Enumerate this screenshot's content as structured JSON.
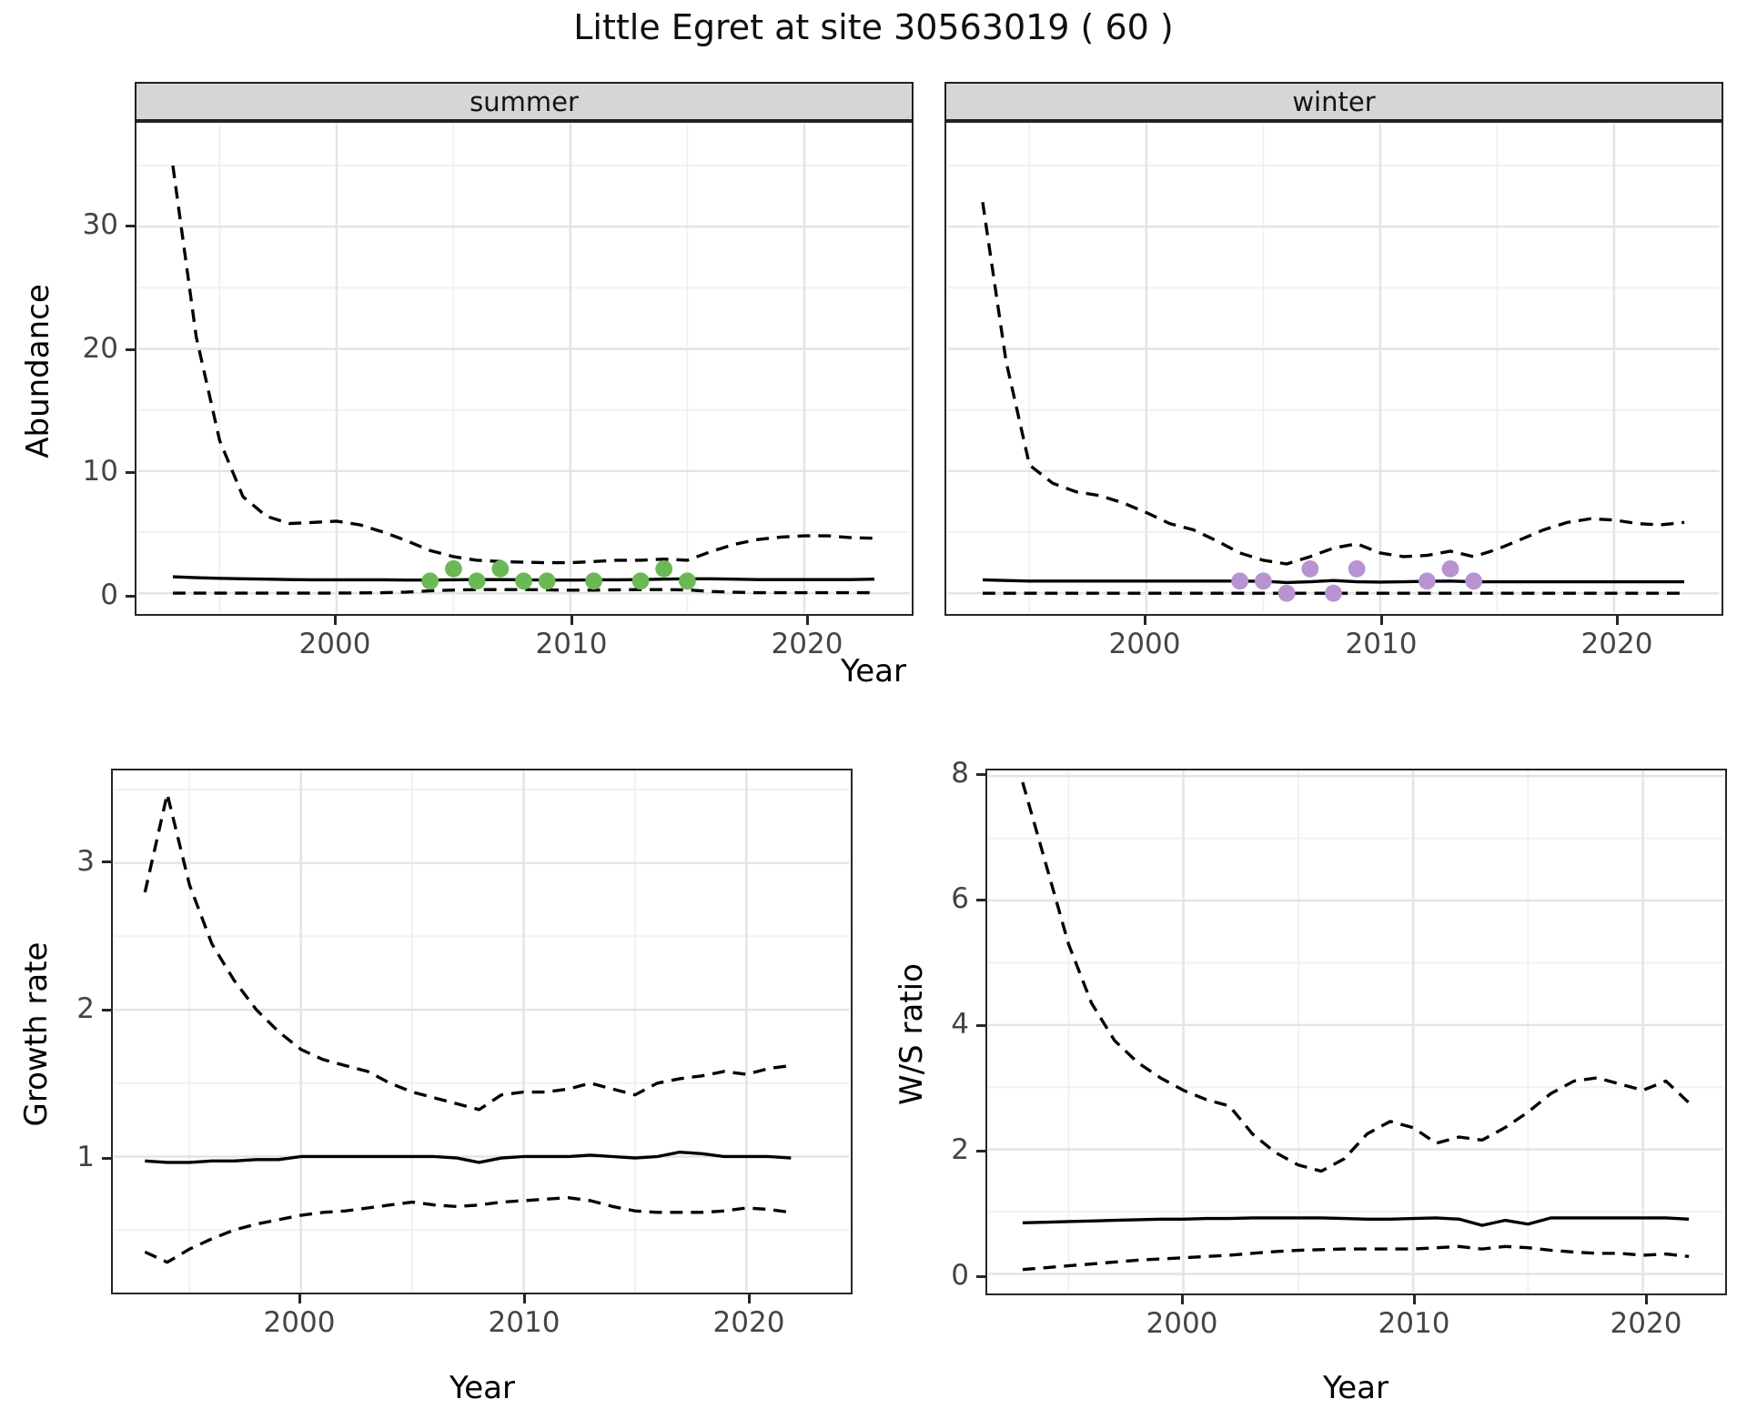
{
  "title": "Little Egret at site 30563019 ( 60 )",
  "colors": {
    "summer_point": "#6ab954",
    "winter_point": "#b794d1",
    "line": "#000000",
    "tick_text": "#444444",
    "strip_bg": "#d6d6d6",
    "grid_major": "#e4e4e4",
    "grid_minor": "#f1f1f1",
    "panel_border": "#262626"
  },
  "chart_data": [
    {
      "id": "abundance_summer",
      "type": "line",
      "facet_label": "summer",
      "ylabel": "Abundance",
      "xlabel": "Year",
      "xlim": [
        1991.5,
        2024.5
      ],
      "ylim": [
        -1.62,
        38.5
      ],
      "xticks": [
        2000,
        2010,
        2020
      ],
      "xminor": [
        1995,
        2005,
        2015
      ],
      "yticks": [
        0,
        10,
        20,
        30
      ],
      "yminor": [
        5,
        15,
        25,
        35
      ],
      "grid": true,
      "x": [
        1993,
        1994,
        1995,
        1996,
        1997,
        1998,
        1999,
        2000,
        2001,
        2002,
        2003,
        2004,
        2005,
        2006,
        2007,
        2008,
        2009,
        2010,
        2011,
        2012,
        2013,
        2014,
        2015,
        2016,
        2017,
        2018,
        2019,
        2020,
        2021,
        2022,
        2023
      ],
      "series": [
        {
          "name": "upper_ci",
          "style": "dashed",
          "values": [
            35,
            21,
            12.5,
            7.9,
            6.3,
            5.7,
            5.8,
            5.9,
            5.6,
            5.0,
            4.3,
            3.5,
            3.0,
            2.7,
            2.6,
            2.55,
            2.5,
            2.5,
            2.6,
            2.7,
            2.7,
            2.8,
            2.7,
            3.4,
            4.0,
            4.4,
            4.6,
            4.7,
            4.7,
            4.55,
            4.5
          ]
        },
        {
          "name": "median",
          "style": "solid",
          "values": [
            1.35,
            1.28,
            1.22,
            1.18,
            1.15,
            1.12,
            1.1,
            1.1,
            1.1,
            1.1,
            1.08,
            1.08,
            1.1,
            1.12,
            1.12,
            1.1,
            1.08,
            1.08,
            1.1,
            1.1,
            1.12,
            1.15,
            1.18,
            1.18,
            1.15,
            1.12,
            1.12,
            1.12,
            1.12,
            1.12,
            1.15
          ]
        },
        {
          "name": "lower_ci",
          "style": "dashed",
          "values": [
            0.02,
            0.02,
            0.02,
            0.02,
            0.02,
            0.02,
            0.02,
            0.02,
            0.03,
            0.05,
            0.1,
            0.2,
            0.27,
            0.3,
            0.3,
            0.3,
            0.28,
            0.25,
            0.25,
            0.28,
            0.3,
            0.3,
            0.28,
            0.15,
            0.08,
            0.05,
            0.05,
            0.05,
            0.05,
            0.05,
            0.05
          ]
        }
      ],
      "points": {
        "name": "observed-summer-counts",
        "color_key": "summer_point",
        "x": [
          2004,
          2005,
          2006,
          2007,
          2008,
          2009,
          2011,
          2013,
          2014,
          2015
        ],
        "y": [
          1,
          2,
          1,
          2,
          1,
          1,
          1,
          1,
          2,
          1
        ]
      }
    },
    {
      "id": "abundance_winter",
      "type": "line",
      "facet_label": "winter",
      "ylabel": "Abundance",
      "xlabel": "Year",
      "xlim": [
        1991.5,
        2024.5
      ],
      "ylim": [
        -1.62,
        38.5
      ],
      "xticks": [
        2000,
        2010,
        2020
      ],
      "xminor": [
        1995,
        2005,
        2015
      ],
      "yticks": [
        0,
        10,
        20,
        30
      ],
      "yminor": [
        5,
        15,
        25,
        35
      ],
      "grid": true,
      "x": [
        1993,
        1994,
        1995,
        1996,
        1997,
        1998,
        1999,
        2000,
        2001,
        2002,
        2003,
        2004,
        2005,
        2006,
        2007,
        2008,
        2009,
        2010,
        2011,
        2012,
        2013,
        2014,
        2015,
        2016,
        2017,
        2018,
        2019,
        2020,
        2021,
        2022,
        2023
      ],
      "series": [
        {
          "name": "upper_ci",
          "style": "dashed",
          "values": [
            32,
            19,
            10.5,
            9.0,
            8.3,
            8.0,
            7.4,
            6.6,
            5.7,
            5.2,
            4.3,
            3.3,
            2.7,
            2.4,
            3.0,
            3.7,
            4.05,
            3.3,
            3.0,
            3.1,
            3.45,
            3.0,
            3.6,
            4.4,
            5.2,
            5.8,
            6.1,
            6.0,
            5.7,
            5.6,
            5.8
          ]
        },
        {
          "name": "median",
          "style": "solid",
          "values": [
            1.1,
            1.05,
            1.0,
            1.0,
            1.0,
            1.0,
            1.0,
            1.0,
            1.0,
            1.0,
            1.0,
            1.0,
            0.98,
            0.88,
            0.95,
            1.05,
            0.95,
            0.92,
            0.95,
            0.98,
            1.0,
            0.95,
            0.95,
            0.95,
            0.95,
            0.95,
            0.95,
            0.95,
            0.95,
            0.95,
            0.95
          ]
        },
        {
          "name": "lower_ci",
          "style": "dashed",
          "values": [
            0,
            0,
            0,
            0,
            0,
            0,
            0,
            0,
            0,
            0,
            0,
            0,
            0,
            0,
            0,
            0,
            0,
            0,
            0,
            0,
            0,
            0,
            0,
            0,
            0,
            0,
            0,
            0,
            0,
            0,
            0
          ]
        }
      ],
      "points": {
        "name": "observed-winter-counts",
        "color_key": "winter_point",
        "x": [
          2004,
          2005,
          2006,
          2007,
          2008,
          2009,
          2012,
          2013,
          2014
        ],
        "y": [
          1,
          1,
          0,
          2,
          0,
          2,
          1,
          2,
          1
        ]
      }
    },
    {
      "id": "growth_rate",
      "type": "line",
      "facet_label": "",
      "ylabel": "Growth rate",
      "xlabel": "Year",
      "xlim": [
        1991.6,
        2024.6
      ],
      "ylim": [
        0.08,
        3.63
      ],
      "xticks": [
        2000,
        2010,
        2020
      ],
      "xminor": [
        1995,
        2005,
        2015
      ],
      "yticks": [
        1,
        2,
        3
      ],
      "yminor": [
        0.5,
        1.5,
        2.5,
        3.5
      ],
      "grid": true,
      "x": [
        1993,
        1994,
        1995,
        1996,
        1997,
        1998,
        1999,
        2000,
        2001,
        2002,
        2003,
        2004,
        2005,
        2006,
        2007,
        2008,
        2009,
        2010,
        2011,
        2012,
        2013,
        2014,
        2015,
        2016,
        2017,
        2018,
        2019,
        2020,
        2021,
        2022
      ],
      "series": [
        {
          "name": "upper_ci",
          "style": "dashed",
          "values": [
            2.8,
            3.47,
            2.85,
            2.45,
            2.2,
            2.0,
            1.85,
            1.73,
            1.66,
            1.62,
            1.58,
            1.5,
            1.44,
            1.4,
            1.36,
            1.32,
            1.42,
            1.44,
            1.44,
            1.46,
            1.5,
            1.46,
            1.42,
            1.5,
            1.53,
            1.55,
            1.58,
            1.56,
            1.6,
            1.62
          ]
        },
        {
          "name": "median",
          "style": "solid",
          "values": [
            0.97,
            0.96,
            0.96,
            0.97,
            0.97,
            0.98,
            0.98,
            1.0,
            1.0,
            1.0,
            1.0,
            1.0,
            1.0,
            1.0,
            0.99,
            0.96,
            0.99,
            1.0,
            1.0,
            1.0,
            1.01,
            1.0,
            0.99,
            1.0,
            1.03,
            1.02,
            1.0,
            1.0,
            1.0,
            0.99
          ]
        },
        {
          "name": "lower_ci",
          "style": "dashed",
          "values": [
            0.35,
            0.28,
            0.37,
            0.44,
            0.5,
            0.54,
            0.57,
            0.6,
            0.62,
            0.63,
            0.65,
            0.67,
            0.69,
            0.67,
            0.66,
            0.67,
            0.69,
            0.7,
            0.71,
            0.72,
            0.7,
            0.66,
            0.63,
            0.62,
            0.62,
            0.62,
            0.63,
            0.65,
            0.64,
            0.62
          ]
        }
      ],
      "points": null
    },
    {
      "id": "ws_ratio",
      "type": "line",
      "facet_label": "",
      "ylabel": "W/S ratio",
      "xlabel": "Year",
      "xlim": [
        1991.5,
        2023.5
      ],
      "ylim": [
        -0.3,
        8.09
      ],
      "xticks": [
        2000,
        2010,
        2020
      ],
      "xminor": [
        1995,
        2005,
        2015
      ],
      "yticks": [
        0,
        2,
        4,
        6,
        8
      ],
      "yminor": [
        1,
        3,
        5,
        7
      ],
      "grid": true,
      "x": [
        1993,
        1994,
        1995,
        1996,
        1997,
        1998,
        1999,
        2000,
        2001,
        2002,
        2003,
        2004,
        2005,
        2006,
        2007,
        2008,
        2009,
        2010,
        2011,
        2012,
        2013,
        2014,
        2015,
        2016,
        2017,
        2018,
        2019,
        2020,
        2021,
        2022
      ],
      "series": [
        {
          "name": "upper_ci",
          "style": "dashed",
          "values": [
            7.9,
            6.6,
            5.3,
            4.35,
            3.75,
            3.4,
            3.15,
            2.95,
            2.8,
            2.7,
            2.25,
            1.95,
            1.75,
            1.65,
            1.85,
            2.25,
            2.45,
            2.35,
            2.1,
            2.2,
            2.15,
            2.35,
            2.6,
            2.9,
            3.1,
            3.15,
            3.05,
            2.95,
            3.1,
            2.75
          ]
        },
        {
          "name": "median",
          "style": "solid",
          "values": [
            0.82,
            0.83,
            0.84,
            0.85,
            0.86,
            0.87,
            0.88,
            0.88,
            0.89,
            0.89,
            0.9,
            0.9,
            0.9,
            0.9,
            0.89,
            0.88,
            0.88,
            0.89,
            0.9,
            0.88,
            0.78,
            0.86,
            0.8,
            0.9,
            0.9,
            0.9,
            0.9,
            0.9,
            0.9,
            0.88
          ]
        },
        {
          "name": "lower_ci",
          "style": "dashed",
          "values": [
            0.07,
            0.1,
            0.13,
            0.16,
            0.19,
            0.22,
            0.24,
            0.26,
            0.28,
            0.3,
            0.33,
            0.36,
            0.38,
            0.39,
            0.4,
            0.4,
            0.4,
            0.4,
            0.42,
            0.44,
            0.4,
            0.44,
            0.42,
            0.38,
            0.35,
            0.33,
            0.33,
            0.3,
            0.32,
            0.28
          ]
        }
      ],
      "points": null
    }
  ]
}
